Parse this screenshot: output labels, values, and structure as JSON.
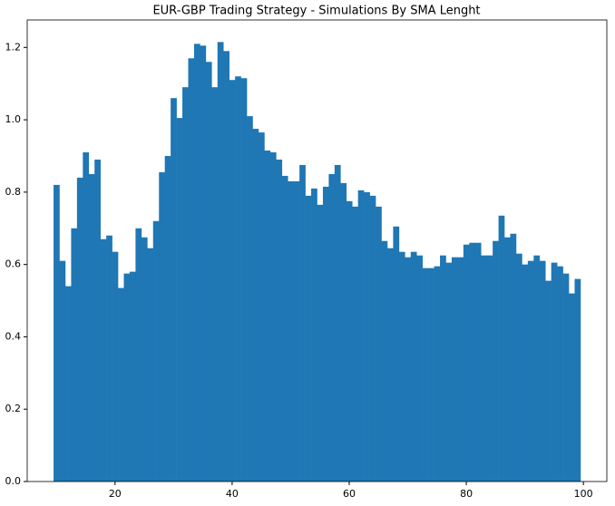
{
  "chart_data": {
    "type": "bar",
    "title": "EUR-GBP Trading Strategy - Simulations By SMA Lenght",
    "color": "#1f77b4",
    "x": [
      10,
      11,
      12,
      13,
      14,
      15,
      16,
      17,
      18,
      19,
      20,
      21,
      22,
      23,
      24,
      25,
      26,
      27,
      28,
      29,
      30,
      31,
      32,
      33,
      34,
      35,
      36,
      37,
      38,
      39,
      40,
      41,
      42,
      43,
      44,
      45,
      46,
      47,
      48,
      49,
      50,
      51,
      52,
      53,
      54,
      55,
      56,
      57,
      58,
      59,
      60,
      61,
      62,
      63,
      64,
      65,
      66,
      67,
      68,
      69,
      70,
      71,
      72,
      73,
      74,
      75,
      76,
      77,
      78,
      79,
      80,
      81,
      82,
      83,
      84,
      85,
      86,
      87,
      88,
      89,
      90,
      91,
      92,
      93,
      94,
      95,
      96,
      97,
      98,
      99
    ],
    "values": [
      0.82,
      0.61,
      0.54,
      0.7,
      0.84,
      0.91,
      0.85,
      0.89,
      0.67,
      0.68,
      0.635,
      0.535,
      0.575,
      0.58,
      0.7,
      0.675,
      0.645,
      0.72,
      0.855,
      0.9,
      1.06,
      1.005,
      1.09,
      1.17,
      1.21,
      1.205,
      1.16,
      1.09,
      1.215,
      1.19,
      1.11,
      1.12,
      1.115,
      1.01,
      0.975,
      0.965,
      0.915,
      0.91,
      0.89,
      0.845,
      0.83,
      0.83,
      0.875,
      0.79,
      0.81,
      0.765,
      0.815,
      0.85,
      0.875,
      0.825,
      0.775,
      0.76,
      0.805,
      0.8,
      0.79,
      0.76,
      0.665,
      0.645,
      0.705,
      0.635,
      0.62,
      0.635,
      0.625,
      0.59,
      0.59,
      0.595,
      0.625,
      0.605,
      0.62,
      0.62,
      0.655,
      0.66,
      0.66,
      0.625,
      0.625,
      0.665,
      0.735,
      0.675,
      0.685,
      0.63,
      0.6,
      0.61,
      0.625,
      0.61,
      0.555,
      0.605,
      0.595,
      0.575,
      0.52,
      0.56
    ],
    "bar_width": 1,
    "xlim": [
      5,
      104
    ],
    "xticks": [
      20,
      40,
      60,
      80,
      100
    ],
    "ylim": [
      0,
      1.276
    ],
    "yticks": [
      {
        "value": 0,
        "label": "0.0"
      },
      0.2,
      0.4,
      0.6,
      0.8,
      {
        "value": 1,
        "label": "1.0"
      },
      1.2
    ]
  }
}
